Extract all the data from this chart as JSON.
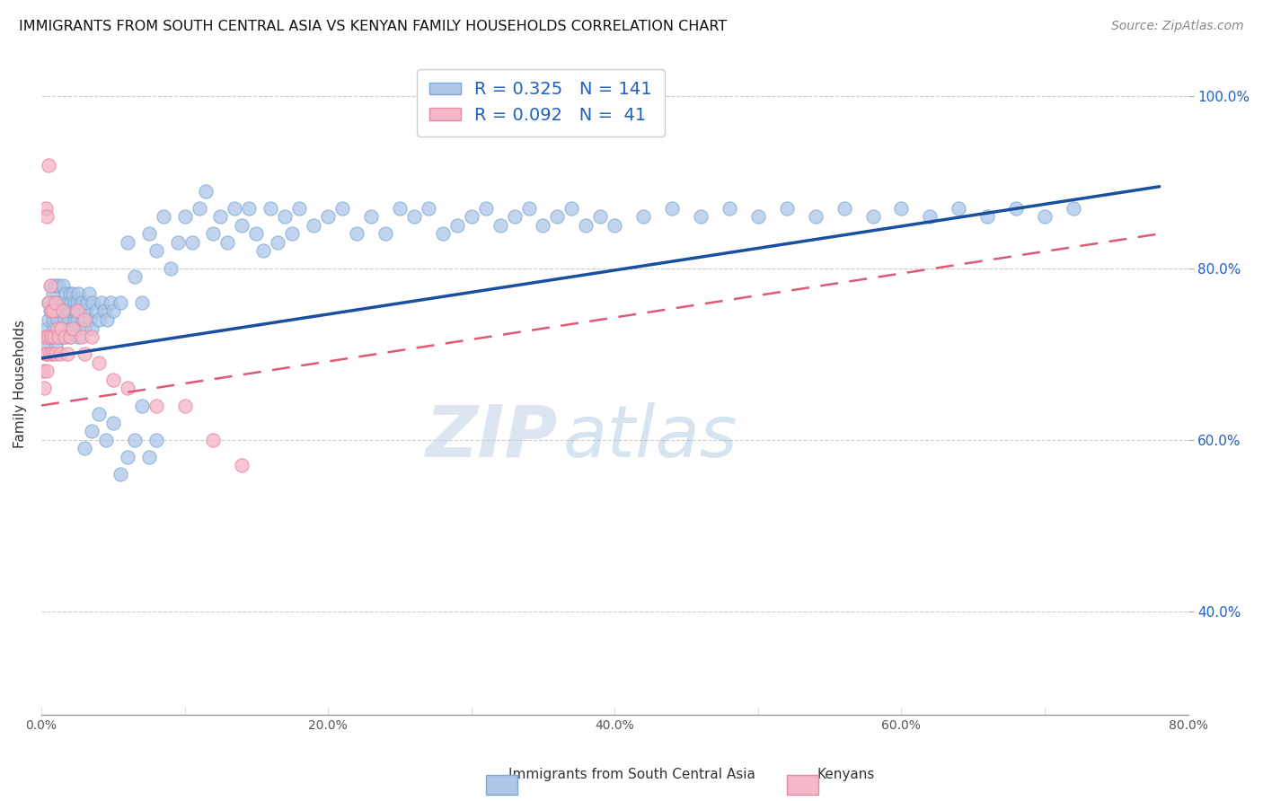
{
  "title": "IMMIGRANTS FROM SOUTH CENTRAL ASIA VS KENYAN FAMILY HOUSEHOLDS CORRELATION CHART",
  "source": "Source: ZipAtlas.com",
  "ylabel": "Family Households",
  "xlim": [
    0.0,
    0.8
  ],
  "ylim": [
    0.28,
    1.05
  ],
  "xticks": [
    0.0,
    0.1,
    0.2,
    0.3,
    0.4,
    0.5,
    0.6,
    0.7,
    0.8
  ],
  "yticks": [
    0.4,
    0.6,
    0.8,
    1.0
  ],
  "ytick_labels_right": [
    "40.0%",
    "60.0%",
    "80.0%",
    "100.0%"
  ],
  "xtick_labels": [
    "0.0%",
    "",
    "20.0%",
    "",
    "40.0%",
    "",
    "60.0%",
    "",
    "80.0%"
  ],
  "r_blue": 0.325,
  "n_blue": 141,
  "r_pink": 0.092,
  "n_pink": 41,
  "blue_color": "#aec6e8",
  "blue_edge_color": "#7ba8d4",
  "pink_color": "#f4b8c8",
  "pink_edge_color": "#e888a0",
  "blue_line_color": "#1a4fa0",
  "pink_line_color": "#e05878",
  "pink_dash_color": "#e05878",
  "legend_text_color": "#2060c0",
  "watermark_color": "#d0dff0",
  "blue_trendline_x": [
    0.0,
    0.78
  ],
  "blue_trendline_y": [
    0.695,
    0.895
  ],
  "pink_trendline_x": [
    0.0,
    0.78
  ],
  "pink_trendline_y": [
    0.64,
    0.84
  ],
  "blue_scatter_x": [
    0.002,
    0.003,
    0.004,
    0.005,
    0.005,
    0.006,
    0.007,
    0.007,
    0.008,
    0.008,
    0.009,
    0.009,
    0.01,
    0.01,
    0.01,
    0.011,
    0.011,
    0.012,
    0.012,
    0.013,
    0.013,
    0.014,
    0.014,
    0.015,
    0.015,
    0.015,
    0.016,
    0.016,
    0.017,
    0.017,
    0.018,
    0.018,
    0.019,
    0.019,
    0.02,
    0.02,
    0.02,
    0.021,
    0.021,
    0.022,
    0.022,
    0.023,
    0.023,
    0.024,
    0.024,
    0.025,
    0.025,
    0.026,
    0.026,
    0.027,
    0.028,
    0.029,
    0.03,
    0.031,
    0.032,
    0.033,
    0.034,
    0.035,
    0.036,
    0.038,
    0.04,
    0.042,
    0.044,
    0.046,
    0.048,
    0.05,
    0.055,
    0.06,
    0.065,
    0.07,
    0.075,
    0.08,
    0.085,
    0.09,
    0.095,
    0.1,
    0.105,
    0.11,
    0.115,
    0.12,
    0.125,
    0.13,
    0.135,
    0.14,
    0.145,
    0.15,
    0.155,
    0.16,
    0.165,
    0.17,
    0.175,
    0.18,
    0.19,
    0.2,
    0.21,
    0.22,
    0.23,
    0.24,
    0.25,
    0.26,
    0.27,
    0.28,
    0.29,
    0.3,
    0.31,
    0.32,
    0.33,
    0.34,
    0.35,
    0.36,
    0.37,
    0.38,
    0.39,
    0.4,
    0.42,
    0.44,
    0.46,
    0.48,
    0.5,
    0.52,
    0.54,
    0.56,
    0.58,
    0.6,
    0.62,
    0.64,
    0.66,
    0.68,
    0.7,
    0.72,
    0.03,
    0.035,
    0.04,
    0.045,
    0.05,
    0.055,
    0.06,
    0.065,
    0.07,
    0.075,
    0.08
  ],
  "blue_scatter_y": [
    0.72,
    0.71,
    0.73,
    0.74,
    0.76,
    0.75,
    0.72,
    0.78,
    0.74,
    0.77,
    0.76,
    0.73,
    0.75,
    0.71,
    0.78,
    0.76,
    0.74,
    0.72,
    0.78,
    0.75,
    0.73,
    0.76,
    0.72,
    0.75,
    0.73,
    0.78,
    0.76,
    0.74,
    0.77,
    0.72,
    0.75,
    0.73,
    0.76,
    0.74,
    0.77,
    0.75,
    0.72,
    0.76,
    0.73,
    0.75,
    0.77,
    0.74,
    0.76,
    0.73,
    0.75,
    0.76,
    0.74,
    0.77,
    0.72,
    0.75,
    0.76,
    0.74,
    0.73,
    0.75,
    0.76,
    0.77,
    0.74,
    0.73,
    0.76,
    0.75,
    0.74,
    0.76,
    0.75,
    0.74,
    0.76,
    0.75,
    0.76,
    0.83,
    0.79,
    0.76,
    0.84,
    0.82,
    0.86,
    0.8,
    0.83,
    0.86,
    0.83,
    0.87,
    0.89,
    0.84,
    0.86,
    0.83,
    0.87,
    0.85,
    0.87,
    0.84,
    0.82,
    0.87,
    0.83,
    0.86,
    0.84,
    0.87,
    0.85,
    0.86,
    0.87,
    0.84,
    0.86,
    0.84,
    0.87,
    0.86,
    0.87,
    0.84,
    0.85,
    0.86,
    0.87,
    0.85,
    0.86,
    0.87,
    0.85,
    0.86,
    0.87,
    0.85,
    0.86,
    0.85,
    0.86,
    0.87,
    0.86,
    0.87,
    0.86,
    0.87,
    0.86,
    0.87,
    0.86,
    0.87,
    0.86,
    0.87,
    0.86,
    0.87,
    0.86,
    0.87,
    0.59,
    0.61,
    0.63,
    0.6,
    0.62,
    0.56,
    0.58,
    0.6,
    0.64,
    0.58,
    0.6
  ],
  "pink_scatter_x": [
    0.001,
    0.002,
    0.003,
    0.003,
    0.004,
    0.004,
    0.005,
    0.005,
    0.006,
    0.006,
    0.007,
    0.007,
    0.008,
    0.008,
    0.009,
    0.01,
    0.01,
    0.011,
    0.012,
    0.013,
    0.014,
    0.015,
    0.016,
    0.018,
    0.02,
    0.022,
    0.025,
    0.028,
    0.03,
    0.035,
    0.04,
    0.05,
    0.06,
    0.08,
    0.1,
    0.12,
    0.14,
    0.003,
    0.004,
    0.005,
    0.03
  ],
  "pink_scatter_y": [
    0.68,
    0.66,
    0.7,
    0.72,
    0.68,
    0.7,
    0.76,
    0.72,
    0.78,
    0.7,
    0.75,
    0.72,
    0.7,
    0.75,
    0.72,
    0.76,
    0.7,
    0.73,
    0.72,
    0.7,
    0.73,
    0.75,
    0.72,
    0.7,
    0.72,
    0.73,
    0.75,
    0.72,
    0.7,
    0.72,
    0.69,
    0.67,
    0.66,
    0.64,
    0.64,
    0.6,
    0.57,
    0.87,
    0.86,
    0.92,
    0.74
  ]
}
